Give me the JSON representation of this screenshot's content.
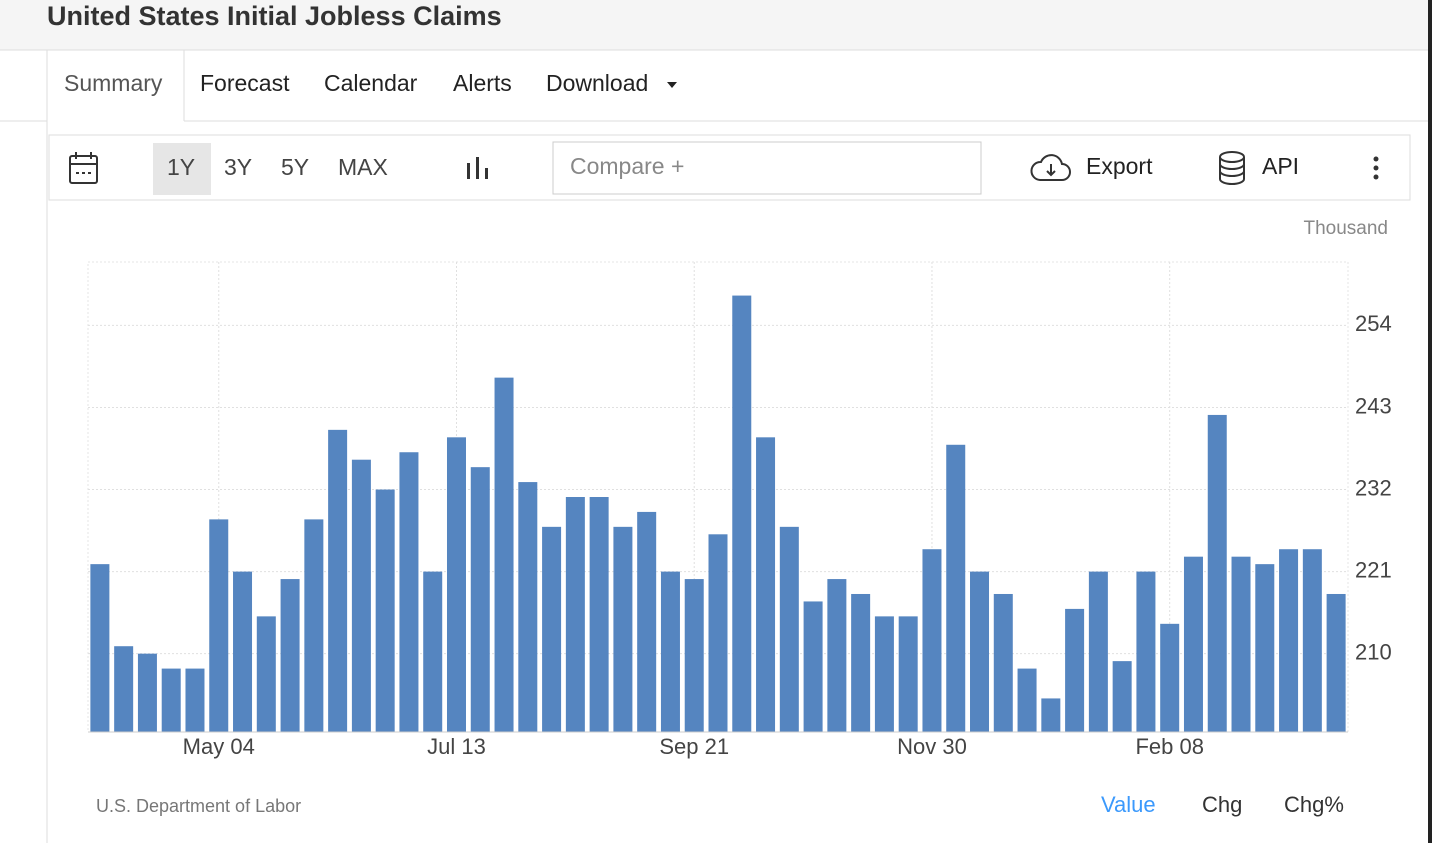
{
  "header": {
    "title": "United States Initial Jobless Claims"
  },
  "tabs": [
    "Summary",
    "Forecast",
    "Calendar",
    "Alerts",
    "Download"
  ],
  "toolbar": {
    "ranges": [
      "1Y",
      "3Y",
      "5Y",
      "MAX"
    ],
    "compare": "Compare +",
    "export": "Export",
    "api": "API"
  },
  "chart_data": {
    "type": "bar",
    "y_unit": "Thousand",
    "categories": [
      null,
      null,
      null,
      null,
      null,
      "May 04",
      null,
      null,
      null,
      null,
      null,
      null,
      null,
      null,
      null,
      "Jul 13",
      null,
      null,
      null,
      null,
      null,
      null,
      null,
      null,
      null,
      "Sep 21",
      null,
      null,
      null,
      null,
      null,
      null,
      null,
      null,
      null,
      "Nov 30",
      null,
      null,
      null,
      null,
      null,
      null,
      null,
      null,
      null,
      "Feb 08",
      null,
      null,
      null,
      null,
      null,
      null,
      null
    ],
    "values": [
      222,
      211,
      210,
      208,
      208,
      228,
      221,
      215,
      220,
      228,
      240,
      236,
      232,
      237,
      221,
      239,
      235,
      247,
      233,
      227,
      231,
      231,
      227,
      229,
      221,
      220,
      226,
      258,
      239,
      227,
      217,
      220,
      218,
      215,
      215,
      224,
      238,
      221,
      218,
      208,
      204,
      216,
      221,
      209,
      221,
      214,
      223,
      242,
      223,
      222,
      224,
      224,
      218
    ],
    "color": "#5585c0",
    "ylim": [
      199.5,
      262.5
    ],
    "yticks": [
      210,
      221,
      232,
      243,
      254
    ],
    "grid": true
  },
  "footer": {
    "source": "U.S. Department of Labor",
    "toggles": [
      "Value",
      "Chg",
      "Chg%"
    ]
  }
}
